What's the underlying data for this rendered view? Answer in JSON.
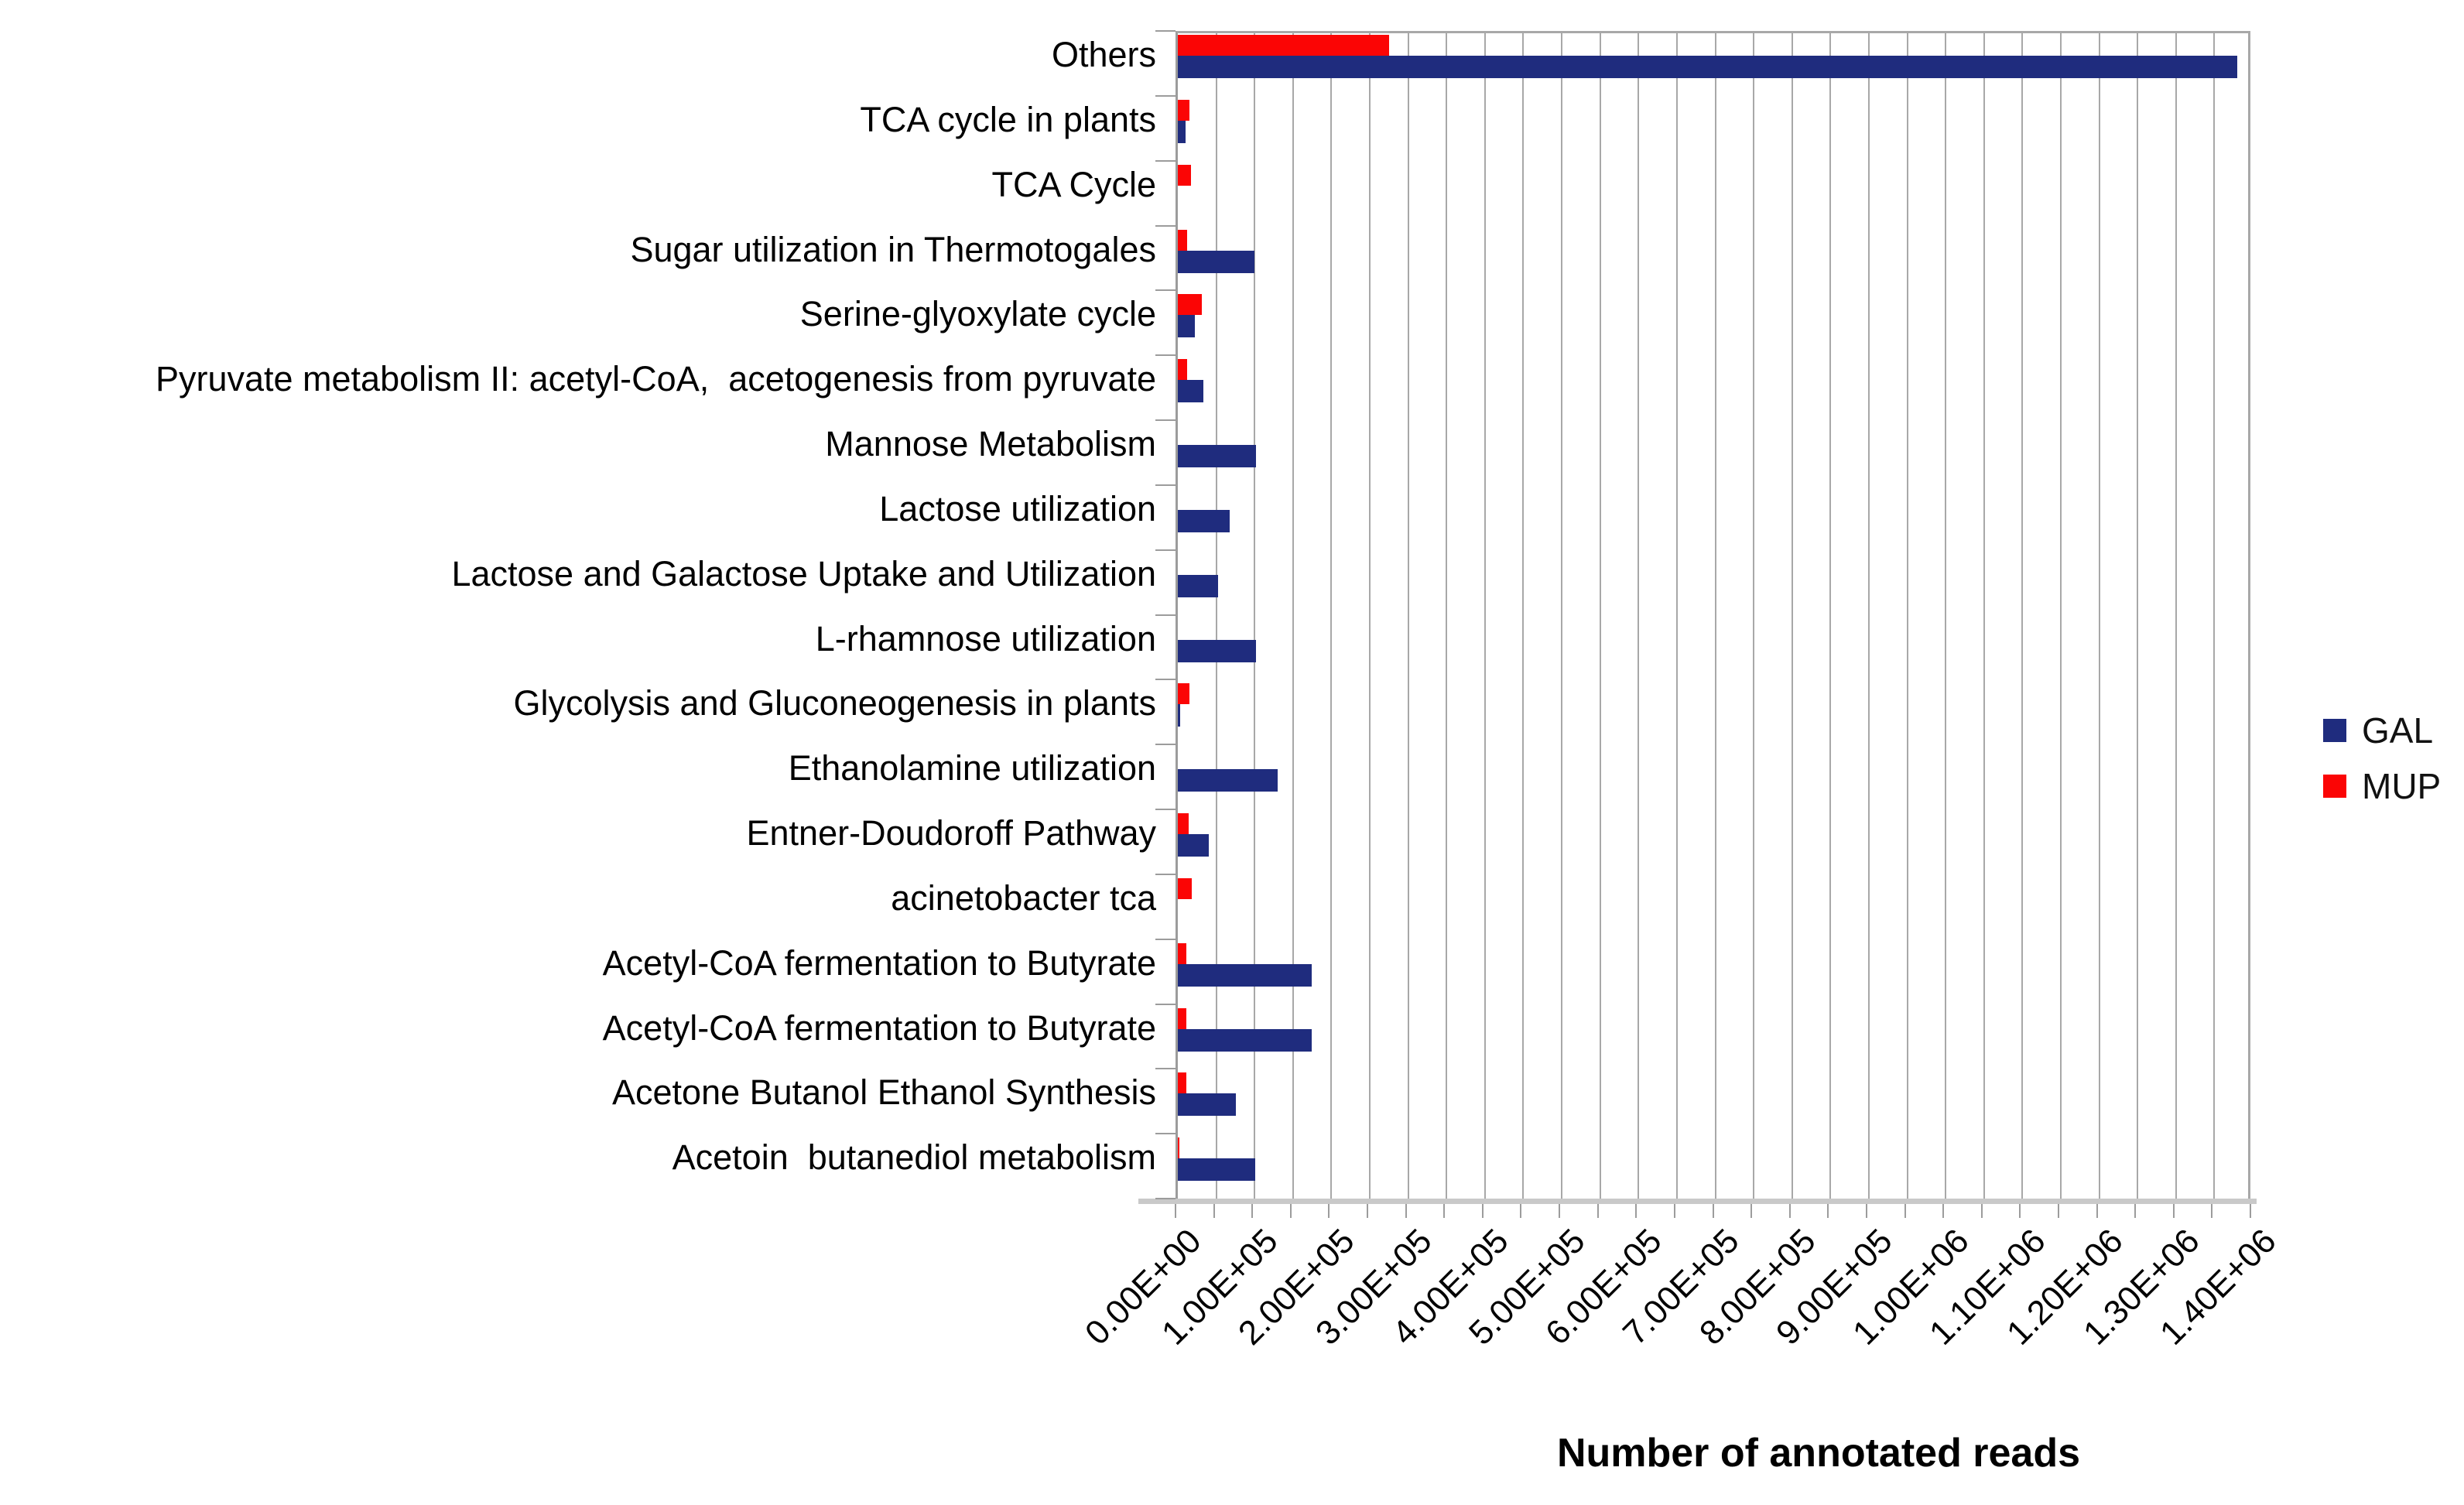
{
  "chart_data": {
    "type": "bar",
    "orientation": "horizontal",
    "xlabel": "Number of annotated reads",
    "categories": [
      "Others",
      "TCA cycle in plants",
      "TCA Cycle",
      "Sugar utilization in Thermotogales",
      "Serine-glyoxylate cycle",
      "Pyruvate metabolism II: acetyl-CoA,  acetogenesis from pyruvate",
      "Mannose Metabolism",
      "Lactose utilization",
      "Lactose and Galactose Uptake and Utilization",
      "L-rhamnose utilization",
      "Glycolysis and Gluconeogenesis in plants",
      "Ethanolamine utilization",
      "Entner-Doudoroff Pathway",
      "acinetobacter tca",
      "Acetyl-CoA fermentation to Butyrate",
      "Acetyl-CoA fermentation to Butyrate",
      "Acetone Butanol Ethanol Synthesis",
      "Acetoin  butanediol metabolism"
    ],
    "series": [
      {
        "name": "GAL",
        "color": "#1f2c7e",
        "values": [
          1380000,
          10000,
          0,
          100000,
          22000,
          33000,
          102000,
          68000,
          52000,
          102000,
          3000,
          130000,
          40000,
          0,
          174000,
          174000,
          76000,
          101000
        ]
      },
      {
        "name": "MUP",
        "color": "#fb0505",
        "values": [
          275000,
          15000,
          17000,
          12000,
          31000,
          12000,
          0,
          0,
          0,
          0,
          15000,
          0,
          14000,
          18000,
          11000,
          11000,
          11000,
          2000
        ]
      }
    ],
    "x_ticks": [
      "0.00E+00",
      "1.00E+05",
      "2.00E+05",
      "3.00E+05",
      "4.00E+05",
      "5.00E+05",
      "6.00E+05",
      "7.00E+05",
      "8.00E+05",
      "9.00E+05",
      "1.00E+06",
      "1.10E+06",
      "1.20E+06",
      "1.30E+06",
      "1.40E+06"
    ],
    "xlim": [
      0,
      1400000
    ],
    "major_tick_step": 100000,
    "minor_grid_step": 50000,
    "grid": true,
    "legend_position": "right",
    "background_color": "#ffffff",
    "grid_color": "#a8a8a8",
    "axis_color": "#9c9c9c"
  }
}
